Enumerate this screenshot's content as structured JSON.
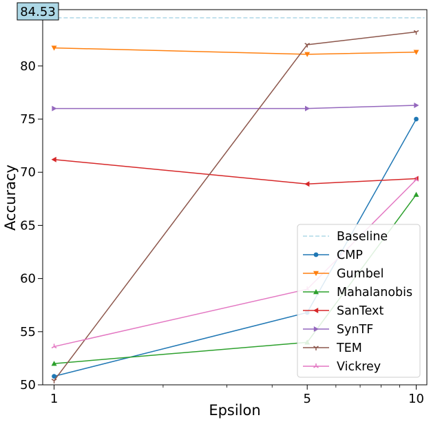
{
  "chart_data": {
    "type": "line",
    "xlabel": "Epsilon",
    "ylabel": "Accuracy",
    "x": [
      1,
      5,
      10
    ],
    "x_scale": "log",
    "xlim": [
      0.93,
      10.7
    ],
    "ylim": [
      50,
      85.3
    ],
    "xticks": [
      "1",
      "5",
      "10"
    ],
    "yticks": [
      "50",
      "55",
      "60",
      "65",
      "70",
      "75",
      "80"
    ],
    "baseline": {
      "name": "Baseline",
      "value": 84.53,
      "label": "84.53",
      "color": "#add8e6",
      "label_bg": "#add8e6"
    },
    "legend_position": "lower-right",
    "series": [
      {
        "name": "CMP",
        "color": "#1f77b4",
        "marker": "circle",
        "values": [
          50.8,
          56.8,
          75.0
        ]
      },
      {
        "name": "Gumbel",
        "color": "#ff7f0e",
        "marker": "triangle-down",
        "values": [
          81.7,
          81.1,
          81.3
        ]
      },
      {
        "name": "Mahalanobis",
        "color": "#2ca02c",
        "marker": "triangle-up",
        "values": [
          52.0,
          54.0,
          67.9
        ]
      },
      {
        "name": "SanText",
        "color": "#d62728",
        "marker": "triangle-left",
        "values": [
          71.2,
          68.9,
          69.4
        ]
      },
      {
        "name": "SynTF",
        "color": "#9467bd",
        "marker": "triangle-right",
        "values": [
          76.0,
          76.0,
          76.3
        ]
      },
      {
        "name": "TEM",
        "color": "#8c564b",
        "marker": "tri-down",
        "values": [
          50.4,
          82.0,
          83.2
        ]
      },
      {
        "name": "Vickrey",
        "color": "#e377c2",
        "marker": "tri-up",
        "values": [
          53.6,
          59.0,
          69.3
        ]
      }
    ]
  }
}
